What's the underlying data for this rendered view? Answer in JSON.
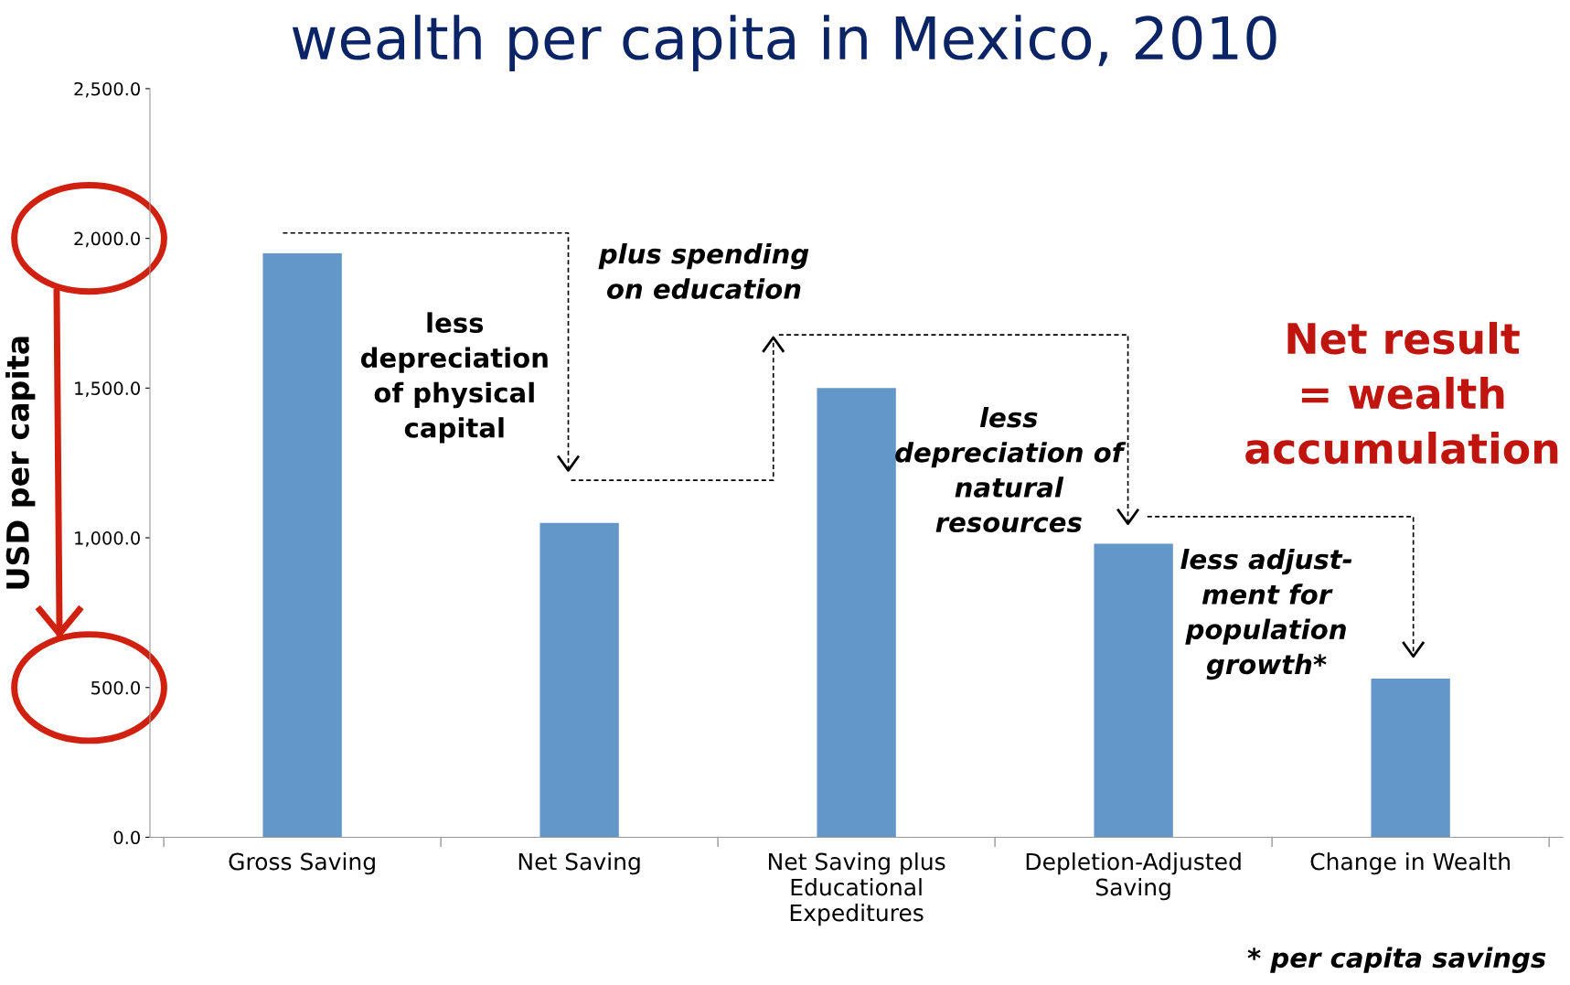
{
  "chart_data": {
    "type": "bar",
    "title": "wealth per capita in Mexico, 2010",
    "ylabel": "USD per capita",
    "categories": [
      "Gross Saving",
      "Net Saving",
      "Net Saving plus\nEducational\nExpeditures",
      "Depletion-Adjusted\nSaving",
      "Change in Wealth"
    ],
    "values": [
      1950,
      1050,
      1500,
      980,
      530
    ],
    "color": "#6397c9",
    "ylim": [
      0,
      2500
    ],
    "yticks": [
      {
        "value": 0,
        "label": "0.0"
      },
      {
        "value": 500,
        "label": "500.0"
      },
      {
        "value": 1000,
        "label": "1,000.0"
      },
      {
        "value": 1500,
        "label": "1,500.0"
      },
      {
        "value": 2000,
        "label": "2,000.0"
      },
      {
        "value": 2500,
        "label": "2,500.0"
      }
    ],
    "grid": false,
    "annotations": [
      "less\ndepreciation\nof physical\ncapital",
      "plus spending\non education",
      "less\ndepreciation of\nnatural\nresources",
      "less adjust-\nment for\npopulation\ngrowth*",
      "Net result\n= wealth\naccumulation",
      "* per capita savings"
    ]
  }
}
